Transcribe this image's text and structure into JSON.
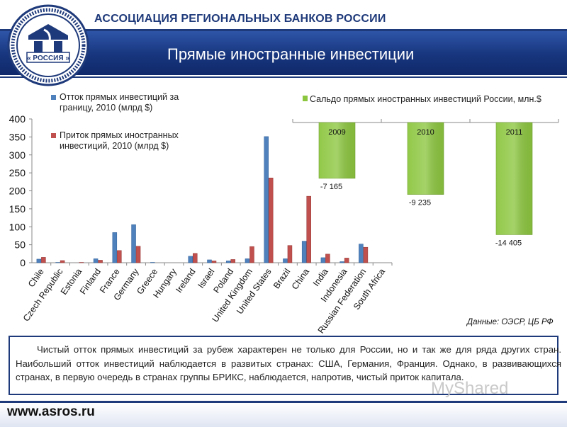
{
  "header": {
    "org_title": "АССОЦИАЦИЯ РЕГИОНАЛЬНЫХ БАНКОВ РОССИИ",
    "page_title": "Прямые иностранные инвестиции",
    "logo_text": "« РОССИЯ »"
  },
  "colors": {
    "brand_blue": "#1f3a7a",
    "series_outflow": "#4f81bd",
    "series_inflow": "#c0504d",
    "russia_balance": "#8cc63f"
  },
  "chart_data": [
    {
      "type": "bar",
      "title": "",
      "xlabel": "",
      "ylabel": "",
      "ylim": [
        0,
        400
      ],
      "yticks": [
        0,
        50,
        100,
        150,
        200,
        250,
        300,
        350,
        400
      ],
      "legend_position": "top-left",
      "categories": [
        "Chile",
        "Czech Republic",
        "Estonia",
        "Finland",
        "France",
        "Germany",
        "Greece",
        "Hungary",
        "Ireland",
        "Israel",
        "Poland",
        "United Kingdom",
        "United States",
        "Brazil",
        "China",
        "India",
        "Indonesia",
        "Russian Federation",
        "South Africa"
      ],
      "series": [
        {
          "name": "Отток прямых инвестиций за границу, 2010 (млрд $)",
          "values": [
            10,
            1,
            0,
            11,
            84,
            106,
            1,
            0,
            18,
            8,
            5,
            11,
            351,
            11,
            60,
            14,
            3,
            52,
            0
          ]
        },
        {
          "name": "Приток прямых иностранных инвестиций, 2010 (млрд $)",
          "values": [
            15,
            6,
            1,
            7,
            34,
            46,
            0,
            0,
            26,
            5,
            9,
            45,
            236,
            48,
            185,
            24,
            13,
            43,
            0
          ]
        }
      ]
    },
    {
      "type": "bar",
      "title": "",
      "legend_position": "top",
      "categories": [
        "2009",
        "2010",
        "2011"
      ],
      "series": [
        {
          "name": "Сальдо прямых иностранных инвестиций России, млн.$",
          "values": [
            -7165,
            -9235,
            -14405
          ],
          "value_labels": [
            "-7 165",
            "-9 235",
            "-14 405"
          ]
        }
      ]
    }
  ],
  "source": "Данные: ОЭСР, ЦБ РФ",
  "note": "Чистый отток прямых инвестиций за рубеж характерен не только для России, но и так же для ряда других стран. Наибольший отток инвестиций наблюдается в развитых странах: США, Германия, Франция. Однако, в развивающихся странах, в первую очередь в странах группы БРИКС, наблюдается, напротив, чистый приток капитала.",
  "footer": {
    "url": "www.asros.ru"
  },
  "watermark": "MyShared"
}
